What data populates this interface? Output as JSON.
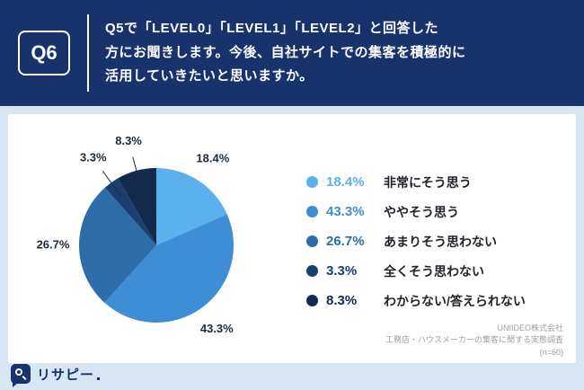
{
  "header": {
    "bg": "#17336b",
    "q_number": "Q6",
    "question_lines": [
      "Q5で「LEVEL0」「LEVEL1」「LEVEL2」と回答した",
      "方にお聞きします。今後、自社サイトでの集客を積極的に",
      "活用していきたいと思いますか。"
    ]
  },
  "chart_data": {
    "type": "pie",
    "title": "",
    "start_angle_deg": 0,
    "direction": "clockwise",
    "legend_position": "right",
    "slices": [
      {
        "label": "非常にそう思う",
        "value": 18.4,
        "display": "18.4%",
        "color": "#5cb1ea"
      },
      {
        "label": "ややそう思う",
        "value": 43.3,
        "display": "43.3%",
        "color": "#3e8dd6"
      },
      {
        "label": "あまりそう思わない",
        "value": 26.7,
        "display": "26.7%",
        "color": "#2e6da8"
      },
      {
        "label": "全くそう思わない",
        "value": 3.3,
        "display": "3.3%",
        "color": "#1b3f70"
      },
      {
        "label": "わからない/答えられない",
        "value": 8.3,
        "display": "8.3%",
        "color": "#112a4e"
      }
    ]
  },
  "source": {
    "lines": [
      "UNIIDEO株式会社",
      "工務店・ハウスメーカーの集客に関する実態調査",
      "(n=60)"
    ]
  },
  "logo": {
    "text": "リサピー"
  }
}
